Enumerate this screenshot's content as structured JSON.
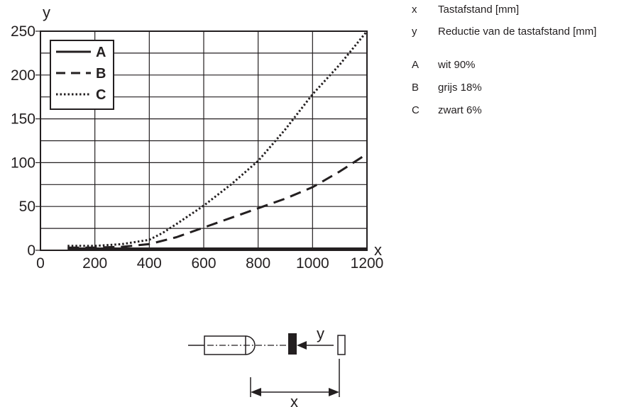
{
  "chart_data": {
    "type": "line",
    "x_axis": {
      "letter": "x",
      "min": 0,
      "max": 1200,
      "ticks": [
        0,
        200,
        400,
        600,
        800,
        1000,
        1200
      ],
      "grid_step": 200
    },
    "y_axis": {
      "letter": "y",
      "min": 0,
      "max": 250,
      "ticks": [
        0,
        50,
        100,
        150,
        200,
        250
      ],
      "grid_step": 25
    },
    "grid": true,
    "legend_position": "top-left",
    "series": [
      {
        "name": "A",
        "style": "solid",
        "x": [
          100,
          200,
          300,
          400,
          500,
          600,
          700,
          800,
          900,
          1000,
          1100,
          1200
        ],
        "y": [
          2,
          2,
          2,
          2,
          2,
          2,
          2,
          2,
          2,
          2,
          2,
          2
        ]
      },
      {
        "name": "B",
        "style": "dashed",
        "x": [
          100,
          200,
          300,
          400,
          500,
          600,
          700,
          800,
          900,
          1000,
          1100,
          1200
        ],
        "y": [
          3,
          3,
          4,
          7,
          15,
          26,
          37,
          48,
          59,
          72,
          90,
          110
        ]
      },
      {
        "name": "C",
        "style": "dotted",
        "x": [
          100,
          200,
          300,
          400,
          450,
          500,
          600,
          700,
          800,
          900,
          1000,
          1100,
          1200
        ],
        "y": [
          5,
          5,
          7,
          12,
          20,
          30,
          51,
          75,
          102,
          138,
          178,
          212,
          250
        ]
      }
    ]
  },
  "key": [
    {
      "code": "x",
      "text": "Tastafstand [mm]"
    },
    {
      "code": "y",
      "text": "Reductie van de tastafstand [mm]"
    },
    {
      "code": "A",
      "text": "wit 90%"
    },
    {
      "code": "B",
      "text": "grijs 18%"
    },
    {
      "code": "C",
      "text": "zwart 6%"
    }
  ],
  "diagram": {
    "y_label": "y",
    "x_label": "x"
  },
  "colors": {
    "ink": "#231f20",
    "background": "#ffffff"
  }
}
